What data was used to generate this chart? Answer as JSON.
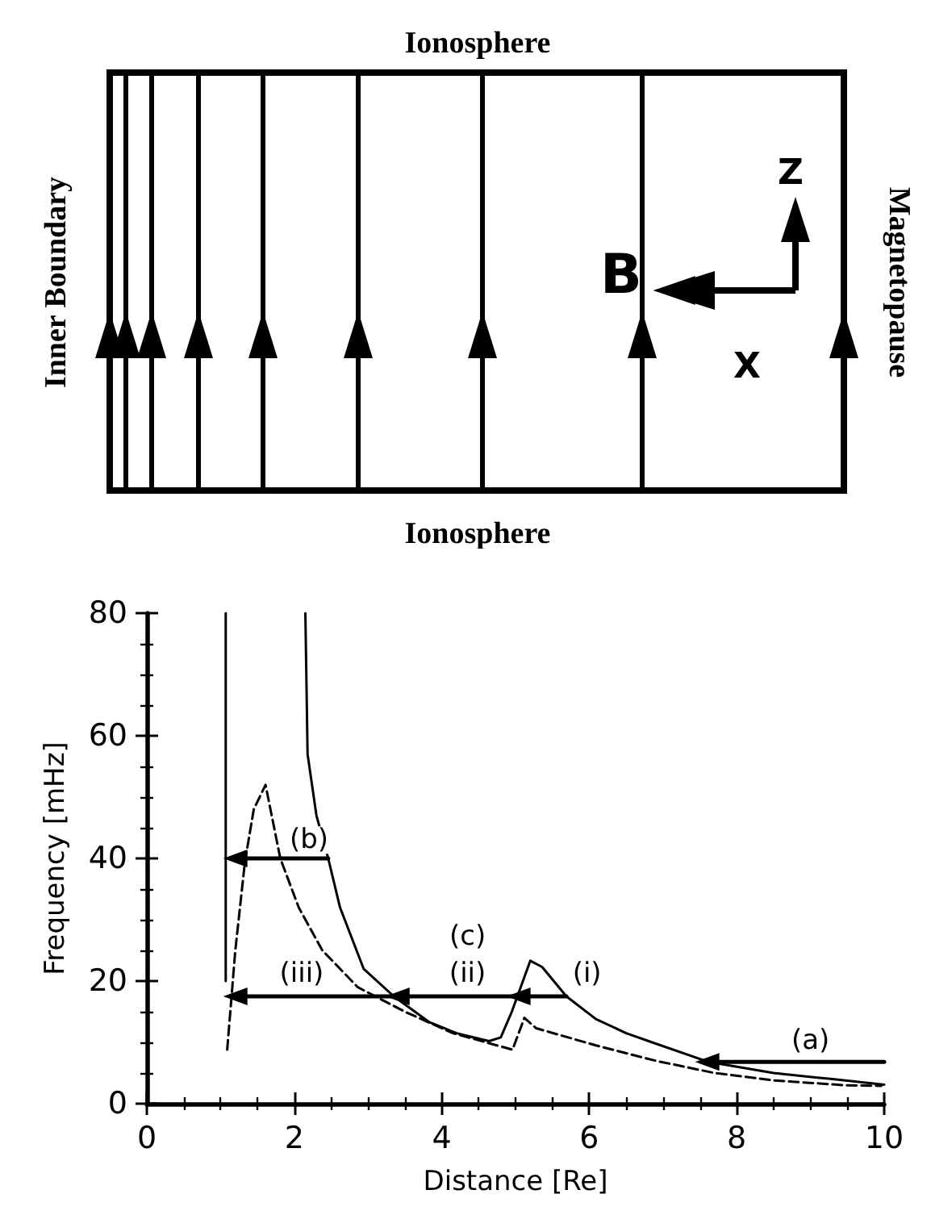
{
  "chart_data": {
    "type": "line",
    "xlabel": "Distance [Re]",
    "ylabel": "Frequency [mHz]",
    "xlim": [
      0,
      10
    ],
    "ylim": [
      0,
      80
    ],
    "xticks": [
      0,
      2,
      4,
      6,
      8,
      10
    ],
    "yticks": [
      0,
      20,
      40,
      60,
      80
    ],
    "grid": false,
    "annotations": [
      "Ionosphere",
      "Ionosphere",
      "Inner Boundary",
      "Magnetopause",
      "B",
      "Z",
      "X",
      {
        "text": "(a)",
        "x": 9.0,
        "y": 10.2
      },
      {
        "text": "(b)",
        "x": 2.2,
        "y": 43
      },
      {
        "text": "(c)",
        "x": 4.35,
        "y": 27.2
      },
      {
        "text": "(ii)",
        "x": 4.35,
        "y": 21.2
      },
      {
        "text": "(iii)",
        "x": 2.1,
        "y": 21.2
      },
      {
        "text": "(i)",
        "x": 5.97,
        "y": 21.2
      }
    ],
    "series": [
      {
        "color": "#000000",
        "line_style": "solid",
        "x": [
          1.07,
          1.07
        ],
        "values": [
          20,
          80
        ]
      },
      {
        "color": "#000000",
        "line_style": "solid",
        "x": [
          2.15,
          2.18,
          2.3,
          2.46,
          2.62,
          2.94,
          3.35,
          3.83,
          4.2,
          4.64,
          4.8,
          4.95,
          5.04,
          5.2,
          5.36,
          5.69,
          6.09,
          6.5,
          6.9,
          7.62,
          8.5,
          9.3,
          10
        ],
        "values": [
          80,
          57,
          47,
          40,
          32,
          22,
          17.5,
          13.3,
          11.5,
          10.2,
          10.8,
          15,
          18,
          23.3,
          22.3,
          17.5,
          13.8,
          11.5,
          9.8,
          6.8,
          5,
          4,
          3.1
        ]
      },
      {
        "color": "#000000",
        "line_style": "dashed",
        "x": [
          1.09,
          1.2,
          1.33,
          1.45,
          1.61,
          1.81,
          2.06,
          2.38,
          2.86,
          3.5,
          4.15,
          4.96,
          5.12,
          5.28,
          6.09,
          6.9,
          7.7,
          8.5,
          9.48,
          9.96
        ],
        "values": [
          8.8,
          25,
          39.4,
          48,
          52,
          40,
          32,
          25,
          19,
          15,
          11.5,
          8.8,
          14,
          12.3,
          9.5,
          7,
          5,
          3.8,
          3,
          2.9
        ]
      },
      {
        "color": "#000000",
        "line_style": "solid",
        "marker": "triangle",
        "x": [
          10,
          7.6
        ],
        "values": [
          6.8,
          6.8
        ]
      },
      {
        "color": "#000000",
        "line_style": "solid",
        "marker": "triangle",
        "x": [
          2.46,
          1.2
        ],
        "values": [
          40,
          40
        ]
      },
      {
        "color": "#000000",
        "line_style": "solid",
        "marker": "triangle",
        "x": [
          5.69,
          5.04
        ],
        "values": [
          17.5,
          17.5
        ]
      },
      {
        "color": "#000000",
        "line_style": "solid",
        "marker": "triangle",
        "x": [
          5.04,
          3.4
        ],
        "values": [
          17.5,
          17.5
        ]
      },
      {
        "color": "#000000",
        "line_style": "solid",
        "marker": "triangle",
        "x": [
          3.4,
          1.2
        ],
        "values": [
          17.5,
          17.5
        ]
      }
    ]
  }
}
